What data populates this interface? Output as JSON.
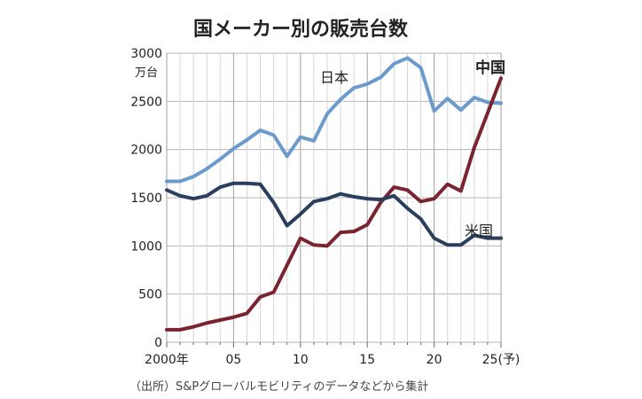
{
  "chart_data": {
    "type": "line",
    "title": "国メーカー別の販売台数",
    "ylabel_unit": "万台",
    "source": "（出所）S&Pグローバルモビリティのデータなどから集計",
    "ylim": [
      0,
      3000
    ],
    "xlim": [
      2000,
      2025
    ],
    "yticks": [
      0,
      500,
      1000,
      1500,
      2000,
      2500,
      3000
    ],
    "ytick_labels": [
      "0",
      "500",
      "1000",
      "1500",
      "2000",
      "2500",
      "3000"
    ],
    "xticks": [
      2000,
      2005,
      2010,
      2015,
      2020,
      2025
    ],
    "xtick_labels": [
      "2000年",
      "05",
      "10",
      "15",
      "20",
      "25(予)"
    ],
    "grid": true,
    "series": [
      {
        "name": "日本",
        "color": "#6a9bcb",
        "x": [
          2000,
          2001,
          2002,
          2003,
          2004,
          2005,
          2006,
          2007,
          2008,
          2009,
          2010,
          2011,
          2012,
          2013,
          2014,
          2015,
          2016,
          2017,
          2018,
          2019,
          2020,
          2021,
          2022,
          2023,
          2024,
          2025
        ],
        "values": [
          1670,
          1670,
          1720,
          1800,
          1900,
          2010,
          2100,
          2200,
          2150,
          1930,
          2130,
          2090,
          2370,
          2520,
          2640,
          2680,
          2750,
          2890,
          2950,
          2850,
          2400,
          2530,
          2410,
          2540,
          2490,
          2480
        ]
      },
      {
        "name": "中国",
        "color": "#7a2430",
        "x": [
          2000,
          2001,
          2002,
          2003,
          2004,
          2005,
          2006,
          2007,
          2008,
          2009,
          2010,
          2011,
          2012,
          2013,
          2014,
          2015,
          2016,
          2017,
          2018,
          2019,
          2020,
          2021,
          2022,
          2023,
          2024,
          2025
        ],
        "values": [
          130,
          130,
          160,
          200,
          230,
          260,
          300,
          470,
          520,
          800,
          1080,
          1010,
          1000,
          1140,
          1150,
          1220,
          1450,
          1610,
          1580,
          1460,
          1490,
          1640,
          1570,
          2020,
          2380,
          2740
        ]
      },
      {
        "name": "米国",
        "color": "#2a3e5e",
        "x": [
          2000,
          2001,
          2002,
          2003,
          2004,
          2005,
          2006,
          2007,
          2008,
          2009,
          2010,
          2011,
          2012,
          2013,
          2014,
          2015,
          2016,
          2017,
          2018,
          2019,
          2020,
          2021,
          2022,
          2023,
          2024,
          2025
        ],
        "values": [
          1580,
          1520,
          1490,
          1520,
          1610,
          1650,
          1650,
          1640,
          1450,
          1210,
          1330,
          1460,
          1490,
          1540,
          1510,
          1490,
          1480,
          1520,
          1390,
          1280,
          1080,
          1010,
          1010,
          1110,
          1080,
          1080
        ]
      }
    ]
  }
}
